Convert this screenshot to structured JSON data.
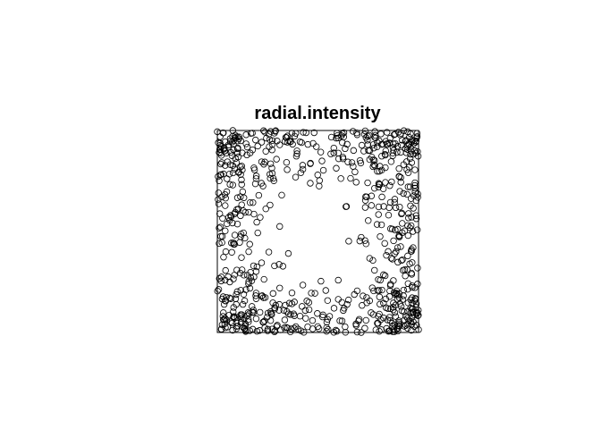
{
  "chart_data": {
    "type": "scatter",
    "title": "radial.intensity",
    "xlabel": "",
    "ylabel": "",
    "xlim": [
      0,
      1
    ],
    "ylim": [
      0,
      1
    ],
    "grid": false,
    "axes_shown": false,
    "point_shape": "open-circle",
    "point_color": "#000000",
    "intensity_pattern": "density increases toward the corners of the unit square",
    "n_points": 800,
    "points": []
  }
}
